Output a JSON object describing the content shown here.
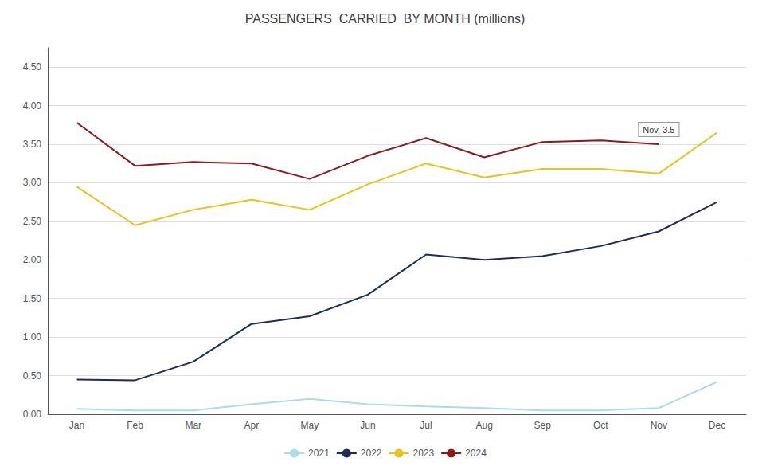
{
  "chart_data": {
    "type": "line",
    "title": "PASSENGERS  CARRIED  BY MONTH (millions)",
    "categories": [
      "Jan",
      "Feb",
      "Mar",
      "Apr",
      "May",
      "Jun",
      "Jul",
      "Aug",
      "Sep",
      "Oct",
      "Nov",
      "Dec"
    ],
    "series": [
      {
        "name": "2021",
        "color": "#aadde8",
        "values": [
          0.07,
          0.05,
          0.05,
          0.13,
          0.2,
          0.13,
          0.1,
          0.08,
          0.05,
          0.05,
          0.08,
          0.42
        ]
      },
      {
        "name": "2022",
        "color": "#1a2e5a",
        "values": [
          0.45,
          0.44,
          0.68,
          1.17,
          1.27,
          1.55,
          2.07,
          2.0,
          2.05,
          2.18,
          2.37,
          2.75
        ]
      },
      {
        "name": "2023",
        "color": "#e8c419",
        "values": [
          2.95,
          2.45,
          2.65,
          2.78,
          2.65,
          2.98,
          3.25,
          3.07,
          3.18,
          3.18,
          3.12,
          3.65
        ]
      },
      {
        "name": "2024",
        "color": "#8b1a1a",
        "values": [
          3.78,
          3.22,
          3.27,
          3.25,
          3.05,
          3.35,
          3.58,
          3.33,
          3.53,
          3.55,
          3.5,
          null
        ]
      }
    ],
    "annotations": [
      {
        "label": "Nov, 3.5",
        "x": "Nov",
        "y": 3.5
      }
    ],
    "ylim": [
      0.0,
      4.75
    ],
    "yticks": [
      {
        "value": 0.0,
        "label": "0.00"
      },
      {
        "value": 0.5,
        "label": "0.50"
      },
      {
        "value": 1.0,
        "label": "1.00"
      },
      {
        "value": 1.5,
        "label": "1.50"
      },
      {
        "value": 2.0,
        "label": "2.00"
      },
      {
        "value": 2.5,
        "label": "2.50"
      },
      {
        "value": 3.0,
        "label": "3.00"
      },
      {
        "value": 3.5,
        "label": "3.50"
      },
      {
        "value": 4.0,
        "label": "4.00"
      },
      {
        "value": 4.5,
        "label": "4.50"
      }
    ],
    "grid": true,
    "legend": "bottom"
  }
}
